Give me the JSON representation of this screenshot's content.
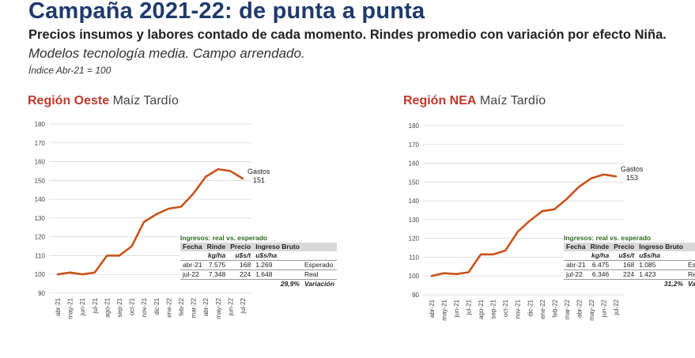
{
  "header": {
    "title": "Campaña 2021-22: de punta a punta",
    "subtitle": "Precios insumos y labores contado de cada momento. Rindes promedio con variación por efecto Niña.",
    "subtitle2": "Modelos tecnología media. Campo arrendado.",
    "index_note": "Índice Abr-21 = 100"
  },
  "colors": {
    "line": "#c8531a",
    "title": "#1f3a6b",
    "region": "#c0392b"
  },
  "chart_data": [
    {
      "type": "line",
      "region": "Región Oeste",
      "crop": "Maíz Tardío",
      "categories": [
        "abr-21",
        "may-21",
        "jun-21",
        "jul-21",
        "ago-21",
        "sep-21",
        "oct-21",
        "nov-21",
        "dic-21",
        "ene-22",
        "feb-22",
        "mar-22",
        "abr-22",
        "may-22",
        "jun-22",
        "jul-22"
      ],
      "series": [
        {
          "name": "Gastos",
          "values": [
            100,
            101,
            100,
            101,
            110,
            110,
            115,
            128,
            132,
            135,
            136,
            143,
            152,
            156,
            155,
            151
          ]
        }
      ],
      "ylim": [
        90,
        180
      ],
      "yticks": [
        "90",
        "100",
        "110",
        "120",
        "130",
        "140",
        "150",
        "160",
        "170",
        "180"
      ],
      "end_label": "Gastos",
      "end_value": "151",
      "table": {
        "caption": "Ingresos: real vs. esperado",
        "headers": [
          "Fecha",
          "Rinde",
          "Precio",
          "Ingreso Bruto",
          ""
        ],
        "units": [
          "",
          "kg/ha",
          "u$s/t",
          "u$s/ha",
          ""
        ],
        "rows": [
          [
            "abr-21",
            "7.575",
            "168",
            "1.269",
            "Esperado"
          ],
          [
            "jul-22",
            "7.348",
            "224",
            "1.648",
            "Real"
          ]
        ],
        "variation": "29,9%",
        "variation_label": "Variación"
      }
    },
    {
      "type": "line",
      "region": "Región NEA",
      "crop": "Maíz Tardío",
      "categories": [
        "abr-21",
        "may-21",
        "jun-21",
        "jul-21",
        "ago-21",
        "sep-21",
        "oct-21",
        "nov-21",
        "dic-21",
        "ene-22",
        "feb-22",
        "mar-22",
        "abr-22",
        "may-22",
        "jun-22",
        "jul-22"
      ],
      "series": [
        {
          "name": "Gastos",
          "values": [
            100,
            101.5,
            101,
            102,
            111.5,
            111.5,
            113.5,
            123.5,
            129.5,
            134.5,
            135.5,
            141,
            147.5,
            152,
            154,
            153
          ]
        }
      ],
      "ylim": [
        90,
        180
      ],
      "yticks": [
        "90",
        "100",
        "110",
        "120",
        "130",
        "140",
        "150",
        "160",
        "170",
        "180"
      ],
      "end_label": "Gastos",
      "end_value": "153",
      "table": {
        "caption": "Ingresos: real vs. esperado",
        "headers": [
          "Fecha",
          "Rinde",
          "Precio",
          "Ingreso Bruto",
          ""
        ],
        "units": [
          "",
          "kg/ha",
          "u$s/t",
          "u$s/ha",
          ""
        ],
        "rows": [
          [
            "abr-21",
            "6.475",
            "168",
            "1.085",
            "Esperado"
          ],
          [
            "jul-22",
            "6.346",
            "224",
            "1.423",
            "Real"
          ]
        ],
        "variation": "31,2%",
        "variation_label": "Variación"
      }
    }
  ]
}
